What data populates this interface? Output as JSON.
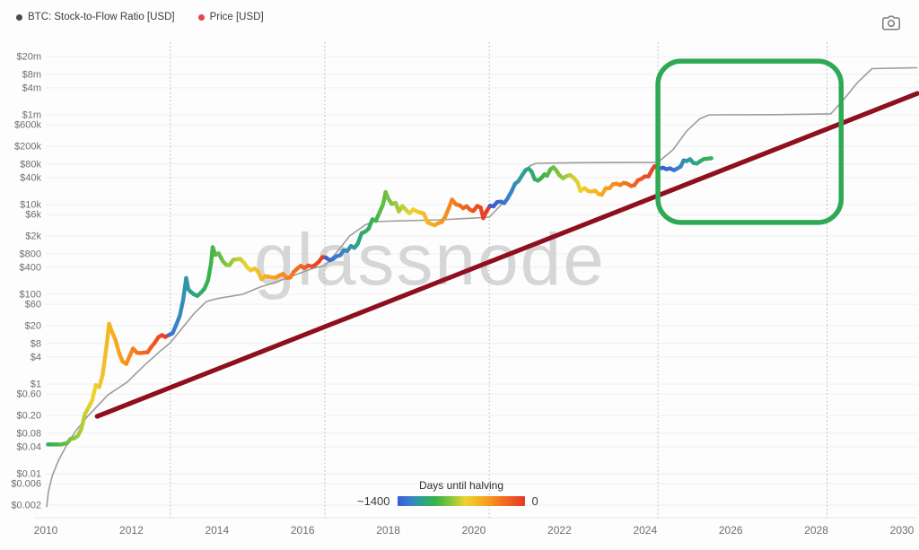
{
  "header": {
    "legend": [
      {
        "label": "BTC: Stock-to-Flow Ratio [USD]",
        "dot_color": "#4d4d4d"
      },
      {
        "label": "Price [USD]",
        "dot_color": "#e2474b"
      }
    ]
  },
  "icons": {
    "top_right": "camera-icon"
  },
  "watermark": {
    "text": "glassnode"
  },
  "colorbar": {
    "title": "Days until halving",
    "min_label": "~1400",
    "max_label": "0"
  },
  "chart_data": {
    "type": "line",
    "x_axis": {
      "tick_years": [
        2010,
        2012,
        2014,
        2016,
        2018,
        2020,
        2022,
        2024,
        2026,
        2028,
        2030
      ],
      "range": [
        2010,
        2030.4
      ]
    },
    "y_axis": {
      "scale": "log",
      "ticks": [
        {
          "label": "$20m",
          "value": 20000000
        },
        {
          "label": "$8m",
          "value": 8000000
        },
        {
          "label": "$4m",
          "value": 4000000
        },
        {
          "label": "$1m",
          "value": 1000000
        },
        {
          "label": "$600k",
          "value": 600000
        },
        {
          "label": "$200k",
          "value": 200000
        },
        {
          "label": "$80k",
          "value": 80000
        },
        {
          "label": "$40k",
          "value": 40000
        },
        {
          "label": "$10k",
          "value": 10000
        },
        {
          "label": "$6k",
          "value": 6000
        },
        {
          "label": "$2k",
          "value": 2000
        },
        {
          "label": "$800",
          "value": 800
        },
        {
          "label": "$400",
          "value": 400
        },
        {
          "label": "$100",
          "value": 100
        },
        {
          "label": "$60",
          "value": 60
        },
        {
          "label": "$20",
          "value": 20
        },
        {
          "label": "$8",
          "value": 8
        },
        {
          "label": "$4",
          "value": 4
        },
        {
          "label": "$1",
          "value": 1
        },
        {
          "label": "$0.60",
          "value": 0.6
        },
        {
          "label": "$0.20",
          "value": 0.2
        },
        {
          "label": "$0.08",
          "value": 0.08
        },
        {
          "label": "$0.04",
          "value": 0.04
        },
        {
          "label": "$0.01",
          "value": 0.01
        },
        {
          "label": "$0.006",
          "value": 0.006
        },
        {
          "label": "$0.002",
          "value": 0.002
        }
      ]
    },
    "halvings": {
      "years": [
        2012.91,
        2016.52,
        2020.36,
        2024.3,
        2028.25
      ],
      "max_days": 1400
    },
    "price_colormap": [
      {
        "f": 0.0,
        "color": "#3b5bd3"
      },
      {
        "f": 0.1,
        "color": "#3a80cd"
      },
      {
        "f": 0.18,
        "color": "#2ba094"
      },
      {
        "f": 0.3,
        "color": "#38b34a"
      },
      {
        "f": 0.42,
        "color": "#8cc73c"
      },
      {
        "f": 0.53,
        "color": "#ecd42f"
      },
      {
        "f": 0.68,
        "color": "#f8a61f"
      },
      {
        "f": 0.82,
        "color": "#f4701f"
      },
      {
        "f": 1.0,
        "color": "#e33a27"
      }
    ],
    "series": [
      {
        "name": "BTC: Stock-to-Flow Ratio [USD]",
        "style": "model-line",
        "color": "#9c9c9c",
        "points": [
          [
            2010.02,
            0.0018
          ],
          [
            2010.06,
            0.004
          ],
          [
            2010.15,
            0.009
          ],
          [
            2010.3,
            0.02
          ],
          [
            2010.5,
            0.045
          ],
          [
            2010.7,
            0.09
          ],
          [
            2011.0,
            0.2
          ],
          [
            2011.45,
            0.57
          ],
          [
            2011.9,
            1.1
          ],
          [
            2012.3,
            2.6
          ],
          [
            2012.7,
            5.7
          ],
          [
            2012.91,
            8.3
          ],
          [
            2013.1,
            14
          ],
          [
            2013.45,
            36
          ],
          [
            2013.75,
            69
          ],
          [
            2014.0,
            80
          ],
          [
            2014.6,
            100
          ],
          [
            2015.0,
            144
          ],
          [
            2015.45,
            199
          ],
          [
            2015.85,
            275
          ],
          [
            2016.25,
            380
          ],
          [
            2016.52,
            437
          ],
          [
            2016.8,
            870
          ],
          [
            2017.1,
            2000
          ],
          [
            2017.45,
            3470
          ],
          [
            2017.65,
            4170
          ],
          [
            2018.4,
            4370
          ],
          [
            2019.2,
            4570
          ],
          [
            2020.0,
            4980
          ],
          [
            2020.36,
            5250
          ],
          [
            2020.7,
            11400
          ],
          [
            2021.0,
            28700
          ],
          [
            2021.3,
            72000
          ],
          [
            2021.45,
            83000
          ],
          [
            2022.5,
            86000
          ],
          [
            2023.5,
            86500
          ],
          [
            2024.3,
            87000
          ],
          [
            2024.65,
            166000
          ],
          [
            2024.97,
            434000
          ],
          [
            2025.28,
            822000
          ],
          [
            2025.5,
            1000000
          ],
          [
            2027.0,
            1010000
          ],
          [
            2028.34,
            1050000
          ],
          [
            2028.64,
            2200000
          ],
          [
            2028.95,
            5100000
          ],
          [
            2029.3,
            10700000
          ],
          [
            2030.36,
            11200000
          ]
        ]
      },
      {
        "name": "Price [USD]",
        "style": "price-line",
        "color_mode": "days-until-halving",
        "points": [
          [
            2010.05,
            0.045
          ],
          [
            2010.2,
            0.045
          ],
          [
            2010.35,
            0.045
          ],
          [
            2010.5,
            0.048
          ],
          [
            2010.58,
            0.06
          ],
          [
            2010.67,
            0.062
          ],
          [
            2010.75,
            0.07
          ],
          [
            2010.83,
            0.1
          ],
          [
            2010.92,
            0.22
          ],
          [
            2011.0,
            0.3
          ],
          [
            2011.08,
            0.42
          ],
          [
            2011.17,
            0.95
          ],
          [
            2011.25,
            0.85
          ],
          [
            2011.33,
            1.6
          ],
          [
            2011.42,
            7
          ],
          [
            2011.48,
            22
          ],
          [
            2011.54,
            15
          ],
          [
            2011.63,
            9.5
          ],
          [
            2011.71,
            5
          ],
          [
            2011.79,
            3.2
          ],
          [
            2011.88,
            2.8
          ],
          [
            2011.96,
            4.2
          ],
          [
            2012.04,
            6.2
          ],
          [
            2012.13,
            5.0
          ],
          [
            2012.21,
            4.9
          ],
          [
            2012.29,
            5.0
          ],
          [
            2012.38,
            5.1
          ],
          [
            2012.46,
            6.6
          ],
          [
            2012.54,
            8.2
          ],
          [
            2012.63,
            11
          ],
          [
            2012.71,
            12.3
          ],
          [
            2012.79,
            11.2
          ],
          [
            2012.88,
            12.4
          ],
          [
            2012.96,
            13.5
          ],
          [
            2013.04,
            20
          ],
          [
            2013.13,
            33
          ],
          [
            2013.21,
            75
          ],
          [
            2013.28,
            230
          ],
          [
            2013.33,
            130
          ],
          [
            2013.38,
            115
          ],
          [
            2013.46,
            100
          ],
          [
            2013.54,
            92
          ],
          [
            2013.63,
            110
          ],
          [
            2013.71,
            135
          ],
          [
            2013.79,
            205
          ],
          [
            2013.86,
            480
          ],
          [
            2013.9,
            1120
          ],
          [
            2013.96,
            760
          ],
          [
            2014.04,
            815
          ],
          [
            2014.13,
            560
          ],
          [
            2014.21,
            455
          ],
          [
            2014.29,
            445
          ],
          [
            2014.38,
            590
          ],
          [
            2014.46,
            600
          ],
          [
            2014.54,
            620
          ],
          [
            2014.63,
            505
          ],
          [
            2014.71,
            395
          ],
          [
            2014.79,
            340
          ],
          [
            2014.88,
            375
          ],
          [
            2014.96,
            320
          ],
          [
            2015.04,
            218
          ],
          [
            2015.13,
            254
          ],
          [
            2015.21,
            247
          ],
          [
            2015.29,
            235
          ],
          [
            2015.38,
            237
          ],
          [
            2015.46,
            263
          ],
          [
            2015.54,
            284
          ],
          [
            2015.63,
            231
          ],
          [
            2015.71,
            237
          ],
          [
            2015.79,
            315
          ],
          [
            2015.88,
            378
          ],
          [
            2015.96,
            430
          ],
          [
            2016.04,
            382
          ],
          [
            2016.13,
            438
          ],
          [
            2016.21,
            416
          ],
          [
            2016.29,
            449
          ],
          [
            2016.38,
            532
          ],
          [
            2016.46,
            672
          ],
          [
            2016.54,
            658
          ],
          [
            2016.63,
            576
          ],
          [
            2016.71,
            611
          ],
          [
            2016.79,
            702
          ],
          [
            2016.88,
            745
          ],
          [
            2016.96,
            960
          ],
          [
            2017.04,
            921
          ],
          [
            2017.13,
            1190
          ],
          [
            2017.21,
            1080
          ],
          [
            2017.29,
            1350
          ],
          [
            2017.38,
            2300
          ],
          [
            2017.46,
            2480
          ],
          [
            2017.54,
            2880
          ],
          [
            2017.63,
            4700
          ],
          [
            2017.71,
            4340
          ],
          [
            2017.79,
            6470
          ],
          [
            2017.88,
            10200
          ],
          [
            2017.94,
            19000
          ],
          [
            2017.99,
            14200
          ],
          [
            2018.08,
            10300
          ],
          [
            2018.17,
            10900
          ],
          [
            2018.25,
            7000
          ],
          [
            2018.33,
            9250
          ],
          [
            2018.42,
            7500
          ],
          [
            2018.5,
            6400
          ],
          [
            2018.58,
            7750
          ],
          [
            2018.67,
            7000
          ],
          [
            2018.75,
            6600
          ],
          [
            2018.83,
            6300
          ],
          [
            2018.92,
            4000
          ],
          [
            2018.99,
            3750
          ],
          [
            2019.08,
            3460
          ],
          [
            2019.17,
            3850
          ],
          [
            2019.25,
            4100
          ],
          [
            2019.33,
            5320
          ],
          [
            2019.42,
            8560
          ],
          [
            2019.49,
            12900
          ],
          [
            2019.58,
            10100
          ],
          [
            2019.67,
            9600
          ],
          [
            2019.75,
            8300
          ],
          [
            2019.83,
            9150
          ],
          [
            2019.92,
            7550
          ],
          [
            2019.99,
            7200
          ],
          [
            2020.08,
            9350
          ],
          [
            2020.16,
            8550
          ],
          [
            2020.22,
            5000
          ],
          [
            2020.29,
            6900
          ],
          [
            2020.38,
            9450
          ],
          [
            2020.46,
            9140
          ],
          [
            2020.54,
            11350
          ],
          [
            2020.63,
            11650
          ],
          [
            2020.71,
            10780
          ],
          [
            2020.79,
            13800
          ],
          [
            2020.88,
            19700
          ],
          [
            2020.96,
            29000
          ],
          [
            2021.04,
            33100
          ],
          [
            2021.13,
            45200
          ],
          [
            2021.21,
            58800
          ],
          [
            2021.28,
            63500
          ],
          [
            2021.35,
            54000
          ],
          [
            2021.42,
            36800
          ],
          [
            2021.5,
            34200
          ],
          [
            2021.58,
            39500
          ],
          [
            2021.65,
            47100
          ],
          [
            2021.71,
            43800
          ],
          [
            2021.79,
            61300
          ],
          [
            2021.86,
            67500
          ],
          [
            2021.93,
            57000
          ],
          [
            2021.99,
            46200
          ],
          [
            2022.08,
            38500
          ],
          [
            2022.17,
            43200
          ],
          [
            2022.25,
            45500
          ],
          [
            2022.33,
            39700
          ],
          [
            2022.42,
            31800
          ],
          [
            2022.49,
            20100
          ],
          [
            2022.58,
            23300
          ],
          [
            2022.67,
            20050
          ],
          [
            2022.75,
            19400
          ],
          [
            2022.83,
            20500
          ],
          [
            2022.92,
            17100
          ],
          [
            2022.99,
            16550
          ],
          [
            2023.08,
            23100
          ],
          [
            2023.17,
            23150
          ],
          [
            2023.25,
            28500
          ],
          [
            2023.33,
            29250
          ],
          [
            2023.42,
            27200
          ],
          [
            2023.5,
            30450
          ],
          [
            2023.58,
            29250
          ],
          [
            2023.67,
            25950
          ],
          [
            2023.75,
            27000
          ],
          [
            2023.83,
            34650
          ],
          [
            2023.92,
            37700
          ],
          [
            2023.99,
            42250
          ],
          [
            2024.08,
            42550
          ],
          [
            2024.17,
            61200
          ],
          [
            2024.22,
            71300
          ],
          [
            2024.28,
            67000
          ],
          [
            2024.33,
            63800
          ],
          [
            2024.42,
            66500
          ],
          [
            2024.5,
            61500
          ],
          [
            2024.58,
            64300
          ],
          [
            2024.67,
            58400
          ],
          [
            2024.75,
            63300
          ],
          [
            2024.83,
            70200
          ],
          [
            2024.9,
            96400
          ],
          [
            2024.97,
            93400
          ],
          [
            2025.05,
            102400
          ],
          [
            2025.13,
            84350
          ],
          [
            2025.21,
            82550
          ],
          [
            2025.3,
            94200
          ],
          [
            2025.38,
            103600
          ],
          [
            2025.46,
            105000
          ],
          [
            2025.55,
            108000
          ]
        ]
      },
      {
        "name": "regression-trend-line",
        "style": "trend-line",
        "color": "#8e0f1e",
        "points": [
          [
            2011.2,
            0.19
          ],
          [
            2030.36,
            3000000
          ]
        ]
      }
    ],
    "annotations": [
      {
        "type": "box",
        "x_from": 2024.3,
        "x_to": 2028.58,
        "price_from": 4000,
        "price_to": 15800000,
        "color": "#2fa953",
        "stroke_width": 5.5,
        "corner_radius": 26
      }
    ]
  }
}
